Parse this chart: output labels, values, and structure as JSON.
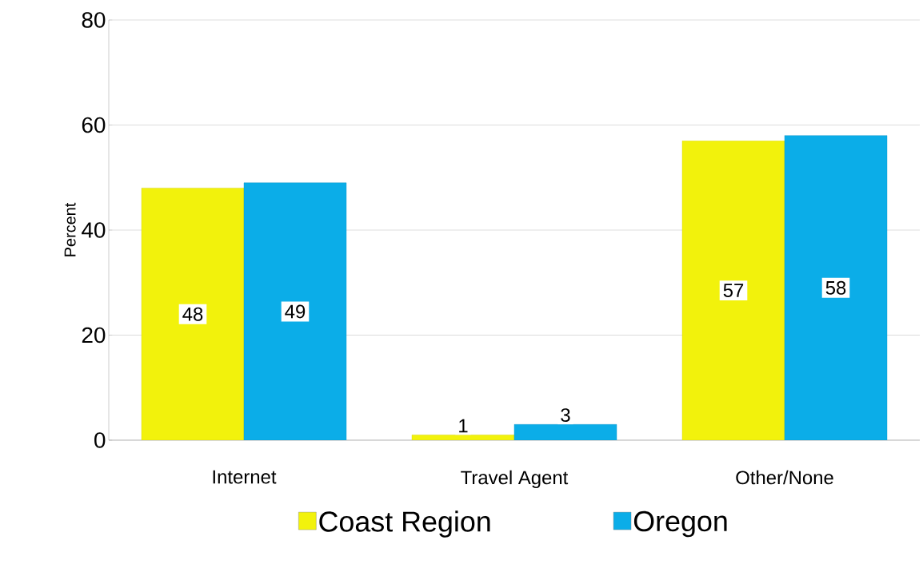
{
  "chart_data": {
    "type": "bar",
    "ylabel": "Percent",
    "categories": [
      "Internet",
      "Travel Agent",
      "Other/None"
    ],
    "series": [
      {
        "name": "Coast Region",
        "color": "#f2f20c",
        "values": [
          48,
          1,
          57
        ]
      },
      {
        "name": "Oregon",
        "color": "#0bade8",
        "values": [
          49,
          3,
          58
        ]
      }
    ],
    "ylim": [
      0,
      80
    ],
    "yticks": [
      0,
      20,
      40,
      60,
      80
    ],
    "grid": "y",
    "legend": "bottom",
    "data_labels": true
  }
}
